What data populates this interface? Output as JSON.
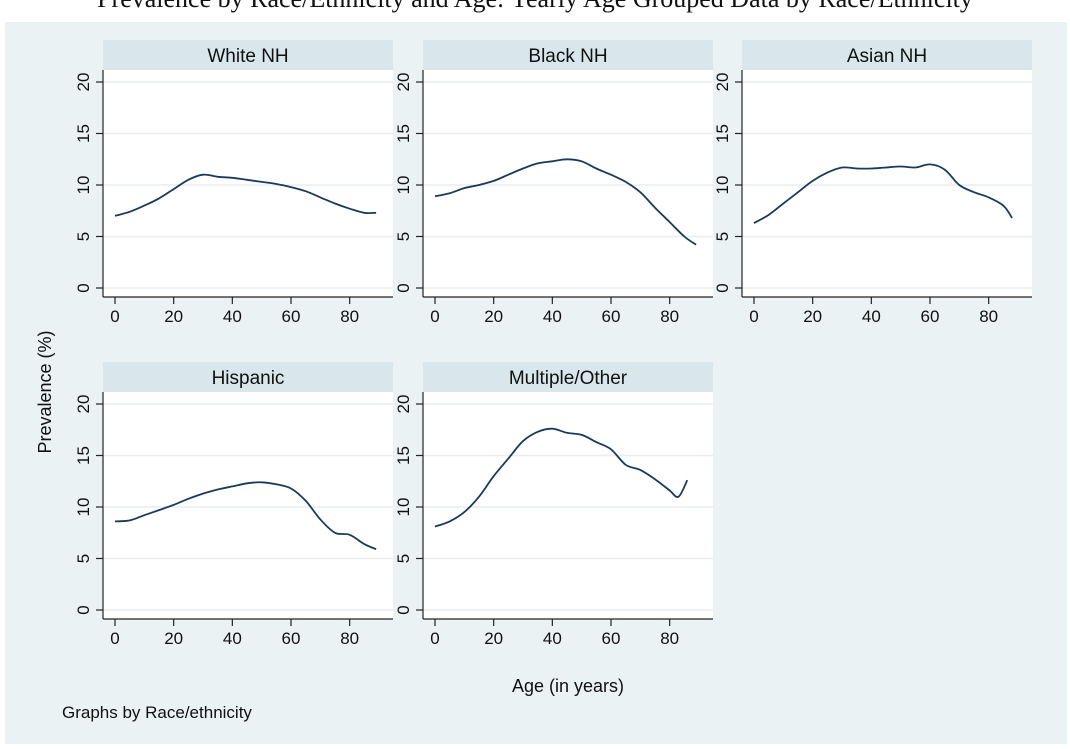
{
  "header": {
    "title": "Prevalence by Race/Ethnicity and Age: Yearly Age Grouped Data by Race/Ethnicity"
  },
  "chart_data": {
    "type": "line",
    "xlabel": "Age (in years)",
    "ylabel": "Prevalence (%)",
    "note": "Graphs by Race/ethnicity",
    "xlim": [
      0,
      90
    ],
    "ylim": [
      0,
      20
    ],
    "x_ticks": [
      0,
      20,
      40,
      60,
      80
    ],
    "y_ticks": [
      0,
      5,
      10,
      15,
      20
    ],
    "grid": true,
    "line_color": "#1a3a5c",
    "strip_color": "#d9e6eb",
    "panels": [
      {
        "name": "White NH",
        "x": [
          0,
          5,
          10,
          15,
          20,
          25,
          30,
          35,
          40,
          45,
          50,
          55,
          60,
          65,
          70,
          75,
          80,
          85,
          89
        ],
        "y": [
          7.0,
          7.4,
          8.0,
          8.7,
          9.6,
          10.5,
          11.0,
          10.8,
          10.7,
          10.5,
          10.3,
          10.1,
          9.8,
          9.4,
          8.8,
          8.2,
          7.7,
          7.3,
          7.3
        ]
      },
      {
        "name": "Black NH",
        "x": [
          0,
          5,
          10,
          15,
          20,
          25,
          30,
          35,
          40,
          45,
          50,
          55,
          60,
          65,
          70,
          75,
          80,
          85,
          89
        ],
        "y": [
          8.9,
          9.2,
          9.7,
          10.0,
          10.4,
          11.0,
          11.6,
          12.1,
          12.3,
          12.5,
          12.3,
          11.6,
          11.0,
          10.3,
          9.3,
          7.8,
          6.4,
          5.0,
          4.2
        ]
      },
      {
        "name": "Asian NH",
        "x": [
          0,
          5,
          10,
          15,
          20,
          25,
          30,
          35,
          40,
          45,
          50,
          55,
          60,
          65,
          70,
          75,
          80,
          85,
          88
        ],
        "y": [
          6.3,
          7.1,
          8.2,
          9.3,
          10.4,
          11.2,
          11.7,
          11.6,
          11.6,
          11.7,
          11.8,
          11.7,
          12.0,
          11.5,
          10.0,
          9.3,
          8.8,
          8.0,
          6.8
        ]
      },
      {
        "name": "Hispanic",
        "x": [
          0,
          5,
          10,
          15,
          20,
          25,
          30,
          35,
          40,
          45,
          50,
          55,
          60,
          65,
          70,
          75,
          80,
          85,
          89
        ],
        "y": [
          8.6,
          8.7,
          9.2,
          9.7,
          10.2,
          10.8,
          11.3,
          11.7,
          12.0,
          12.3,
          12.4,
          12.2,
          11.8,
          10.6,
          8.8,
          7.5,
          7.3,
          6.4,
          5.9
        ]
      },
      {
        "name": "Multiple/Other",
        "x": [
          0,
          5,
          10,
          15,
          20,
          25,
          30,
          35,
          40,
          45,
          50,
          55,
          60,
          65,
          70,
          75,
          80,
          83,
          86
        ],
        "y": [
          8.1,
          8.6,
          9.5,
          11.0,
          13.0,
          14.7,
          16.4,
          17.3,
          17.6,
          17.2,
          17.0,
          16.3,
          15.6,
          14.1,
          13.6,
          12.7,
          11.6,
          11.0,
          12.6
        ]
      }
    ]
  }
}
